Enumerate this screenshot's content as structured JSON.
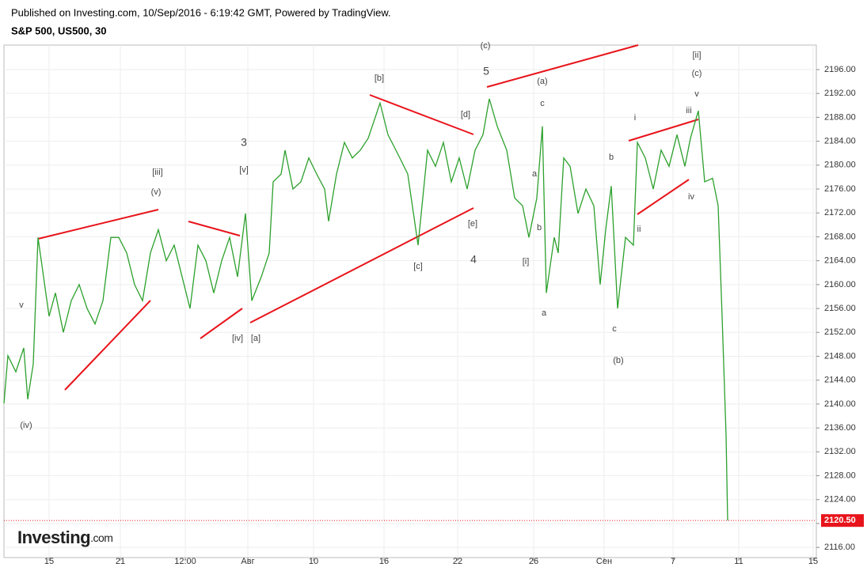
{
  "chart_data": {
    "type": "line",
    "published": "Published on Investing.com, 10/Sep/2016 - 6:19:42 GMT, Powered by TradingView.",
    "title": "S&P 500, US500, 30",
    "watermark": "Investing",
    "watermark_suffix": ".com",
    "color": "#2ca02c",
    "x": [
      5,
      10,
      20,
      30,
      35,
      42,
      48,
      55,
      62,
      70,
      80,
      90,
      100,
      110,
      120,
      130,
      140,
      150,
      160,
      170,
      180,
      190,
      200,
      210,
      220,
      230,
      240,
      250,
      260,
      270,
      280,
      290,
      300,
      310,
      318,
      330,
      340,
      345,
      355,
      360,
      370,
      380,
      390,
      400,
      410,
      415,
      425,
      435,
      445,
      455,
      465,
      480,
      490,
      505,
      515,
      528,
      540,
      550,
      560,
      570,
      580,
      590,
      600,
      610,
      618,
      628,
      640,
      650,
      660,
      668,
      678,
      685,
      690,
      700,
      705,
      712,
      720,
      730,
      740,
      750,
      758,
      765,
      772,
      780,
      790,
      800,
      805,
      815,
      825,
      835,
      845,
      855,
      865,
      872,
      882,
      890,
      900,
      907,
      912,
      917,
      919
    ],
    "values": [
      2140.1,
      2148.1,
      2145.4,
      2149.4,
      2140.8,
      2146.7,
      2167.9,
      2161.3,
      2154.7,
      2158.6,
      2152.0,
      2157.3,
      2160.0,
      2156.0,
      2153.4,
      2157.3,
      2167.9,
      2167.9,
      2165.3,
      2160.0,
      2157.3,
      2165.3,
      2169.2,
      2164.0,
      2166.6,
      2161.3,
      2156.0,
      2166.6,
      2164.0,
      2158.6,
      2164.0,
      2167.9,
      2161.3,
      2171.9,
      2157.3,
      2161.3,
      2165.3,
      2177.2,
      2178.5,
      2182.5,
      2176.0,
      2177.2,
      2181.2,
      2178.5,
      2176.0,
      2170.6,
      2178.5,
      2183.8,
      2181.2,
      2182.5,
      2184.5,
      2190.4,
      2185.1,
      2181.2,
      2178.5,
      2166.6,
      2182.5,
      2179.8,
      2183.8,
      2177.2,
      2181.2,
      2176.0,
      2182.5,
      2185.1,
      2191.1,
      2186.5,
      2182.5,
      2174.5,
      2173.2,
      2167.9,
      2174.5,
      2186.5,
      2158.6,
      2167.9,
      2165.3,
      2181.2,
      2179.8,
      2171.9,
      2176.0,
      2173.2,
      2160.0,
      2169.2,
      2176.5,
      2156.0,
      2167.9,
      2166.6,
      2183.8,
      2181.2,
      2176.0,
      2182.5,
      2179.8,
      2185.1,
      2179.8,
      2184.5,
      2189.1,
      2177.2,
      2177.8,
      2173.2,
      2154.7,
      2134.8,
      2120.5
    ],
    "xlim": [
      5,
      1031
    ],
    "xticks": [
      {
        "value": 62,
        "label": "15"
      },
      {
        "value": 152,
        "label": "21"
      },
      {
        "value": 234,
        "label": "12:00"
      },
      {
        "value": 313,
        "label": "Авг"
      },
      {
        "value": 396,
        "label": "10"
      },
      {
        "value": 485,
        "label": "16"
      },
      {
        "value": 578,
        "label": "22"
      },
      {
        "value": 674,
        "label": "26"
      },
      {
        "value": 763,
        "label": "Сен"
      },
      {
        "value": 850,
        "label": "7"
      },
      {
        "value": 933,
        "label": "11"
      },
      {
        "value": 1027,
        "label": "15"
      }
    ],
    "ylim": [
      2114.3,
      2200.1
    ],
    "yticks": [
      {
        "value": 2116,
        "label": "2116.00"
      },
      {
        "value": 2120,
        "label": "2120.00"
      },
      {
        "value": 2124,
        "label": "2124.00"
      },
      {
        "value": 2128,
        "label": "2128.00"
      },
      {
        "value": 2132,
        "label": "2132.00"
      },
      {
        "value": 2136,
        "label": "2136.00"
      },
      {
        "value": 2140,
        "label": "2140.00"
      },
      {
        "value": 2144,
        "label": "2144.00"
      },
      {
        "value": 2148,
        "label": "2148.00"
      },
      {
        "value": 2152,
        "label": "2152.00"
      },
      {
        "value": 2156,
        "label": "2156.00"
      },
      {
        "value": 2160,
        "label": "2160.00"
      },
      {
        "value": 2164,
        "label": "2164.00"
      },
      {
        "value": 2168,
        "label": "2168.00"
      },
      {
        "value": 2172,
        "label": "2172.00"
      },
      {
        "value": 2176,
        "label": "2176.00"
      },
      {
        "value": 2180,
        "label": "2180.00"
      },
      {
        "value": 2184,
        "label": "2184.00"
      },
      {
        "value": 2188,
        "label": "2188.00"
      },
      {
        "value": 2192,
        "label": "2192.00"
      },
      {
        "value": 2196,
        "label": "2196.00"
      }
    ],
    "last_price": {
      "value": 2120.5,
      "label": "2120.50"
    },
    "grid": true,
    "annotations": [
      "(iv)",
      "v",
      "[iii]",
      "(v)",
      "3",
      "[v]",
      "[iv]",
      "[a]",
      "[b]",
      "[c]",
      "[d]",
      "[e]",
      "4",
      "5",
      "(c)",
      "(a)",
      "c",
      "a",
      "b",
      "[i]",
      "a",
      "b",
      "c",
      "(b)",
      "i",
      "ii",
      "iii",
      "iv",
      "v",
      "(c)",
      "[ii]"
    ]
  }
}
